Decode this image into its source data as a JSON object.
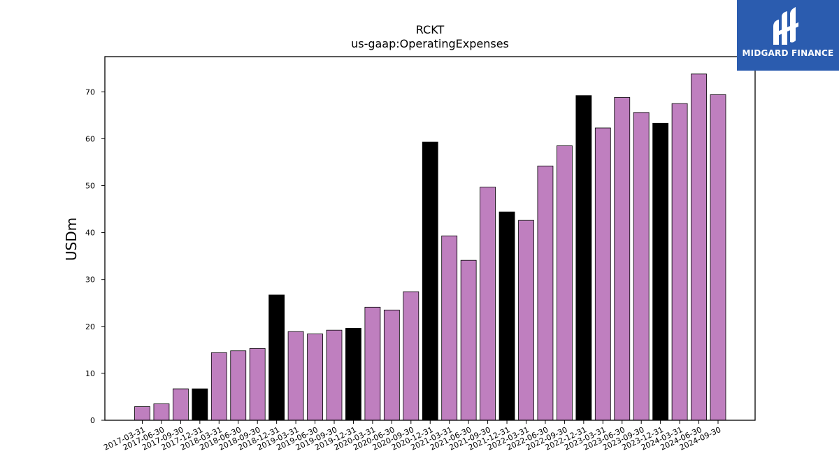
{
  "chart_data": {
    "type": "bar",
    "title": "RCKT",
    "subtitle": "us-gaap:OperatingExpenses",
    "xlabel": "",
    "ylabel": "USDm",
    "ylim": [
      0,
      77.5
    ],
    "yticks": [
      0,
      10,
      20,
      30,
      40,
      50,
      60,
      70
    ],
    "grid": false,
    "colors": {
      "quarter": "#bf7fbf",
      "year_end": "#000000",
      "edge": "#000000"
    },
    "categories": [
      "2017-03-31",
      "2017-06-30",
      "2017-09-30",
      "2017-12-31",
      "2018-03-31",
      "2018-06-30",
      "2018-09-30",
      "2018-12-31",
      "2019-03-31",
      "2019-06-30",
      "2019-09-30",
      "2019-12-31",
      "2020-03-31",
      "2020-06-30",
      "2020-09-30",
      "2020-12-31",
      "2021-03-31",
      "2021-06-30",
      "2021-09-30",
      "2021-12-31",
      "2022-03-31",
      "2022-06-30",
      "2022-09-30",
      "2022-12-31",
      "2023-03-31",
      "2023-06-30",
      "2023-09-30",
      "2023-12-31",
      "2024-03-31",
      "2024-06-30",
      "2024-09-30"
    ],
    "values": [
      2.9,
      3.5,
      6.7,
      6.7,
      14.4,
      14.8,
      15.3,
      26.7,
      18.9,
      18.4,
      19.2,
      19.6,
      24.1,
      23.5,
      27.4,
      59.3,
      39.3,
      34.1,
      49.7,
      44.4,
      42.6,
      54.2,
      58.5,
      69.2,
      62.3,
      68.8,
      65.6,
      63.3,
      67.5,
      73.8,
      69.4
    ],
    "year_end": [
      false,
      false,
      false,
      true,
      false,
      false,
      false,
      true,
      false,
      false,
      false,
      true,
      false,
      false,
      false,
      true,
      false,
      false,
      false,
      true,
      false,
      false,
      false,
      true,
      false,
      false,
      false,
      true,
      false,
      false,
      false
    ]
  },
  "logo": {
    "text": "MIDGARD FINANCE",
    "icon": "midgard-logo-icon",
    "background": "#2b5caf"
  }
}
